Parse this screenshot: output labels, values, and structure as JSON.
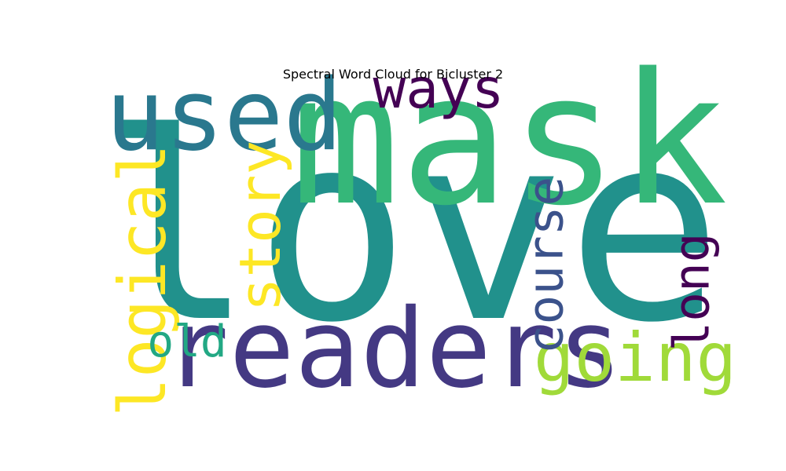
{
  "chart_data": {
    "type": "wordcloud",
    "title": "Spectral Word Cloud for Bicluster 2",
    "colormap": "viridis",
    "background": "#ffffff",
    "words": [
      {
        "text": "love",
        "weight": 1.0,
        "color": "#21918c",
        "orientation": "horizontal"
      },
      {
        "text": "mask",
        "weight": 0.7,
        "color": "#35b779",
        "orientation": "horizontal"
      },
      {
        "text": "readers",
        "weight": 0.42,
        "color": "#443983",
        "orientation": "horizontal"
      },
      {
        "text": "used",
        "weight": 0.38,
        "color": "#2a788e",
        "orientation": "horizontal"
      },
      {
        "text": "going",
        "weight": 0.26,
        "color": "#a0da39",
        "orientation": "horizontal"
      },
      {
        "text": "logical",
        "weight": 0.25,
        "color": "#fde725",
        "orientation": "vertical"
      },
      {
        "text": "story",
        "weight": 0.22,
        "color": "#fde725",
        "orientation": "vertical"
      },
      {
        "text": "ways",
        "weight": 0.21,
        "color": "#440154",
        "orientation": "horizontal"
      },
      {
        "text": "course",
        "weight": 0.19,
        "color": "#3b528b",
        "orientation": "vertical"
      },
      {
        "text": "long",
        "weight": 0.19,
        "color": "#440154",
        "orientation": "vertical"
      },
      {
        "text": "old",
        "weight": 0.17,
        "color": "#22a884",
        "orientation": "horizontal"
      }
    ]
  }
}
